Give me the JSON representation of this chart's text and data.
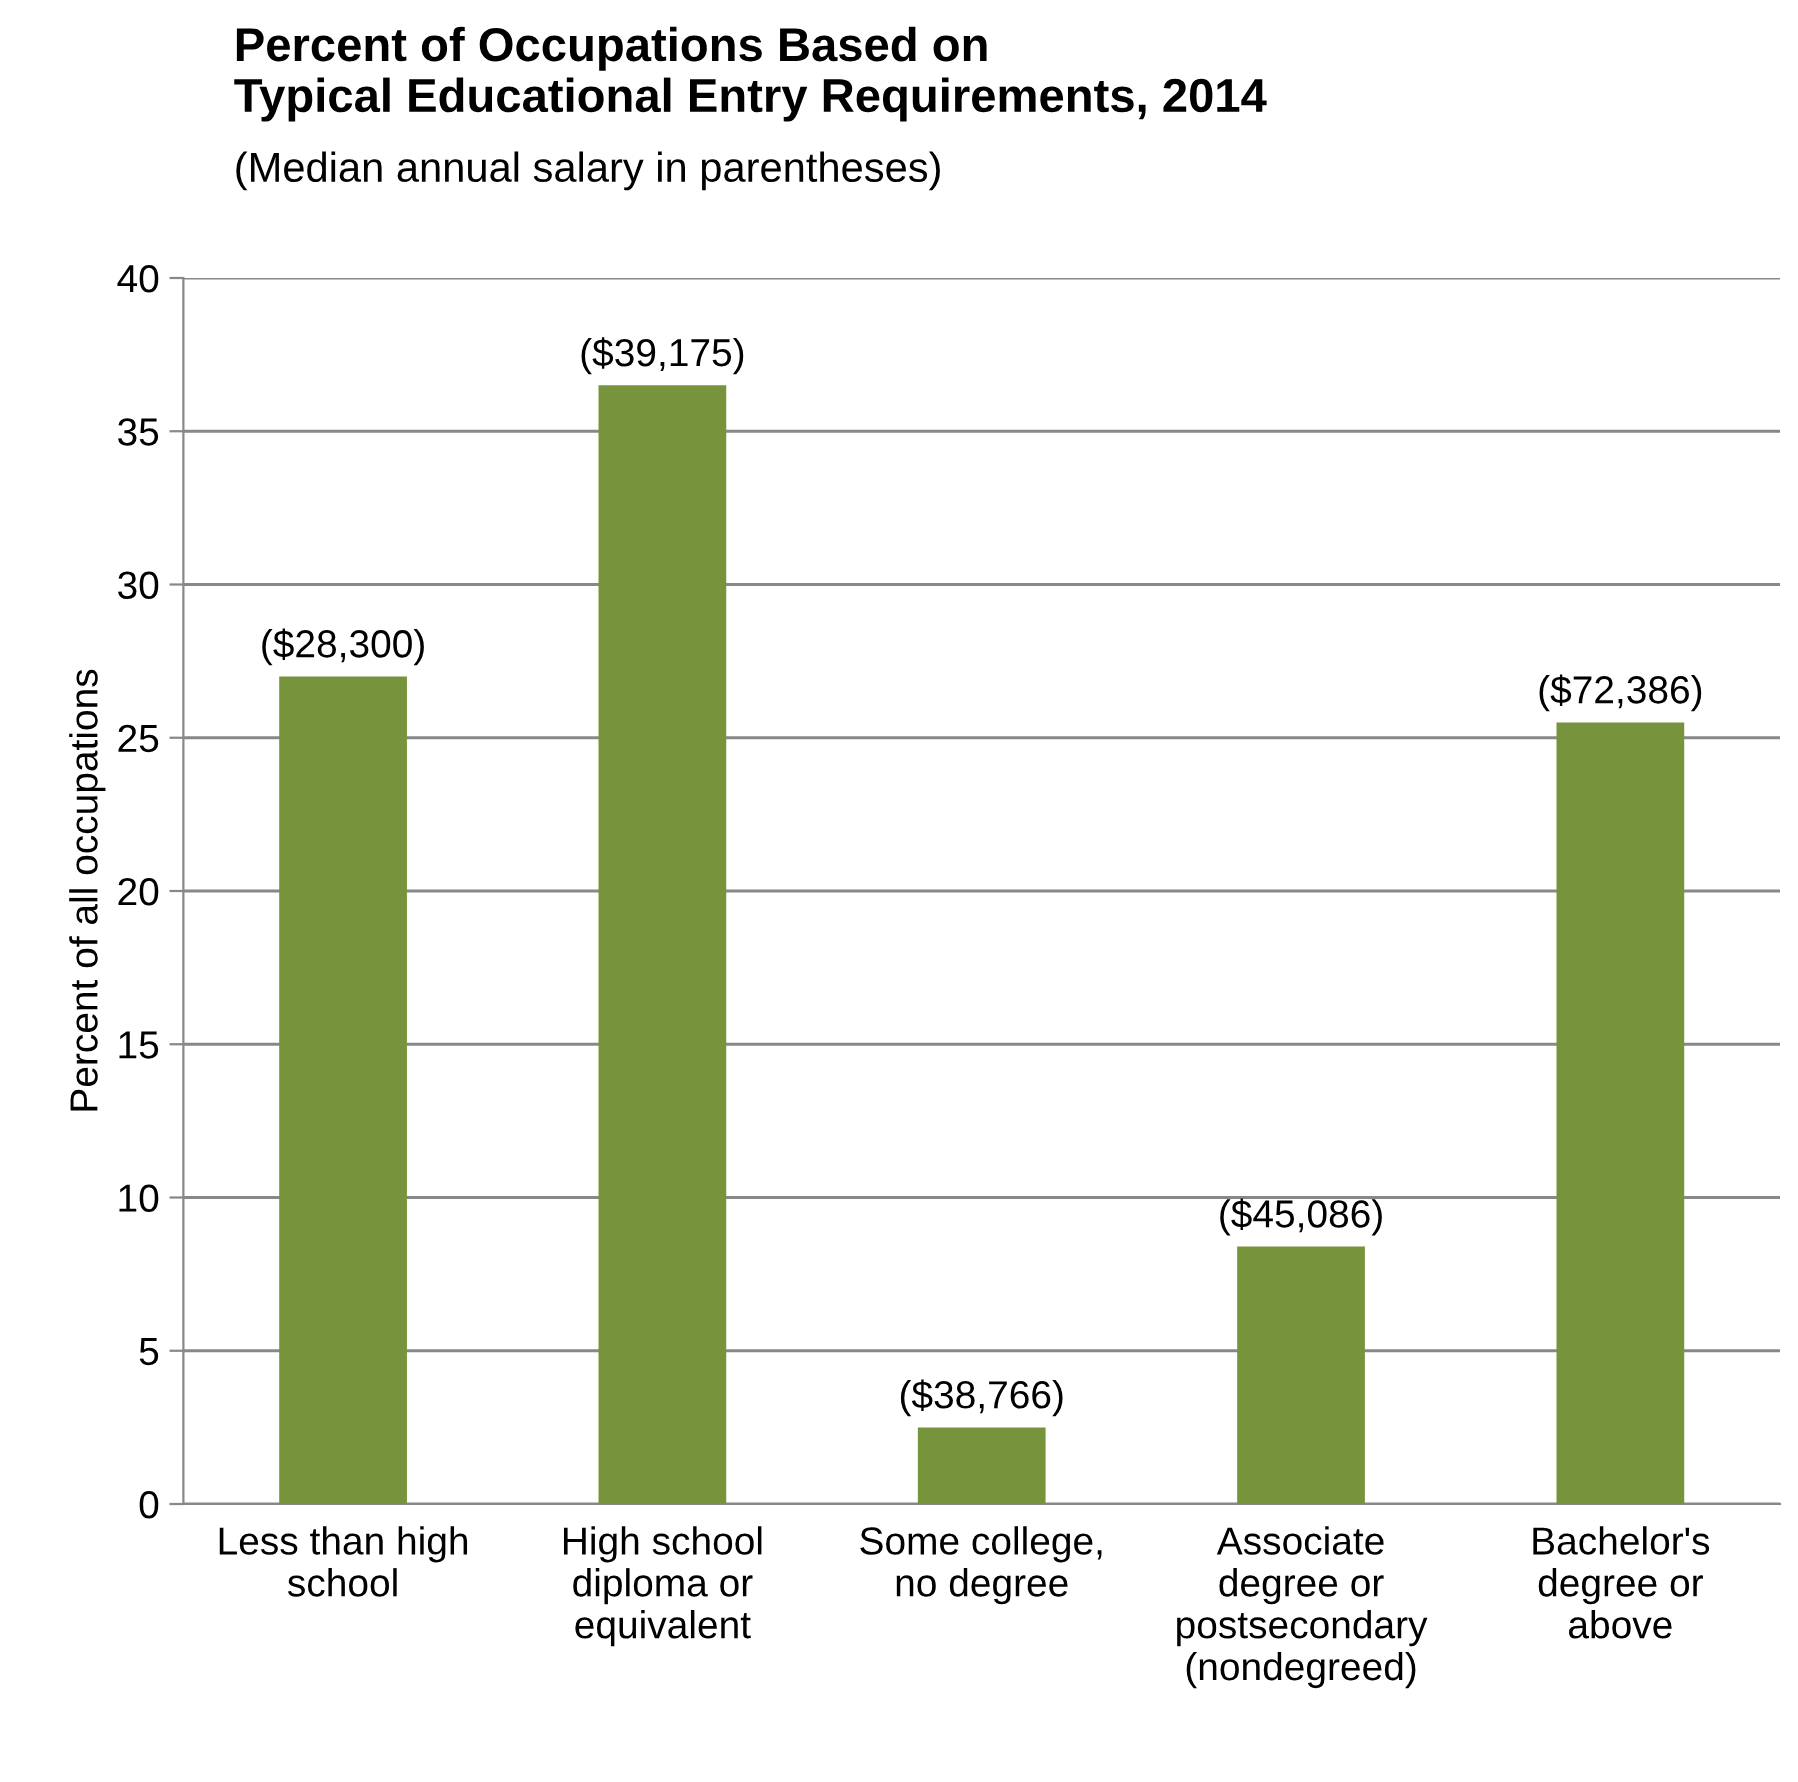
{
  "chart_data": {
    "type": "bar",
    "title": "Percent of Occupations Based on\nTypical Educational Entry Requirements, 2014",
    "subtitle": "(Median annual salary in parentheses)",
    "ylabel": "Percent of all occupations",
    "categories": [
      "Less than high\nschool",
      "High school\ndiploma or\nequivalent",
      "Some college,\nno degree",
      "Associate\ndegree or\npostsecondary\n(nondegreed)",
      "Bachelor's\ndegree or\nabove"
    ],
    "values": [
      27.0,
      36.5,
      2.5,
      8.4,
      25.5
    ],
    "annotations": [
      {
        "text": "($28,300)",
        "x": "Less than high\nschool",
        "y": 27.0
      },
      {
        "text": "($39,175)",
        "x": "High school\ndiploma or\nequivalent",
        "y": 36.5
      },
      {
        "text": "($38,766)",
        "x": "Some college,\nno degree",
        "y": 2.5
      },
      {
        "text": "($45,086)",
        "x": "Associate\ndegree or\npostsecondary\n(nondegreed)",
        "y": 8.4
      },
      {
        "text": "($72,386)",
        "x": "Bachelor's\ndegree or\nabove",
        "y": 25.5
      }
    ],
    "color": "#77933c",
    "ylim": [
      0,
      40
    ],
    "yticks": [
      0,
      5,
      10,
      15,
      20,
      25,
      30,
      35,
      40
    ],
    "grid": "y"
  }
}
